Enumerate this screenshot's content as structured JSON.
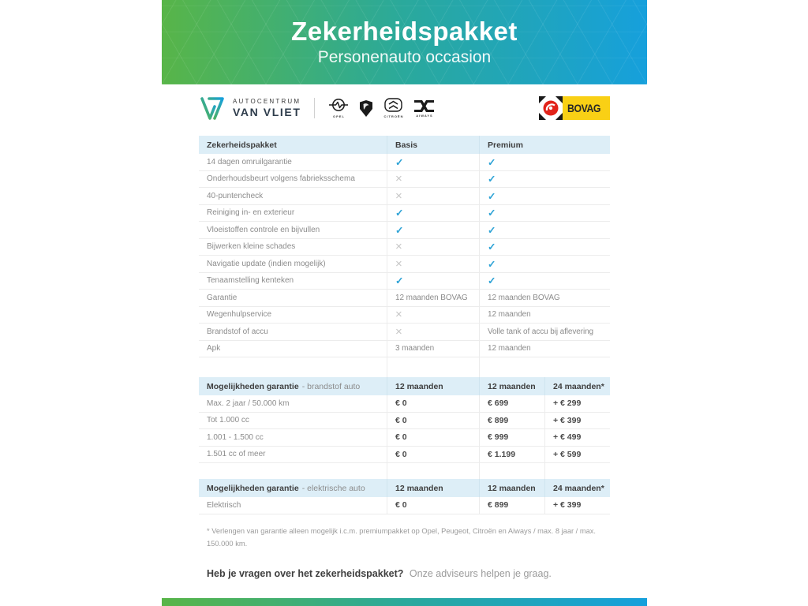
{
  "header": {
    "title": "Zekerheidspakket",
    "subtitle": "Personenauto occasion"
  },
  "branding": {
    "dealer_name_top": "AUTOCENTRUM",
    "dealer_name_bottom": "VAN VLIET",
    "brands": [
      {
        "name": "Opel",
        "caption": "OPEL"
      },
      {
        "name": "Peugeot",
        "caption": ""
      },
      {
        "name": "Citroën",
        "caption": "CITROËN"
      },
      {
        "name": "Aiways",
        "caption": "AIWAYS"
      }
    ],
    "bovag_label": "BOVAG"
  },
  "package_table": {
    "title": "Zekerheidspakket",
    "col_basis": "Basis",
    "col_premium": "Premium",
    "rows": [
      {
        "label": "14 dagen omruilgarantie",
        "basis": "check",
        "premium": "check"
      },
      {
        "label": "Onderhoudsbeurt volgens fabrieksschema",
        "basis": "cross",
        "premium": "check"
      },
      {
        "label": "40-puntencheck",
        "basis": "cross",
        "premium": "check"
      },
      {
        "label": "Reiniging in- en exterieur",
        "basis": "check",
        "premium": "check"
      },
      {
        "label": "Vloeistoffen controle en bijvullen",
        "basis": "check",
        "premium": "check"
      },
      {
        "label": "Bijwerken kleine schades",
        "basis": "cross",
        "premium": "check"
      },
      {
        "label": "Navigatie update (indien mogelijk)",
        "basis": "cross",
        "premium": "check"
      },
      {
        "label": "Tenaamstelling kenteken",
        "basis": "check",
        "premium": "check"
      },
      {
        "label": "Garantie",
        "basis": "12 maanden BOVAG",
        "premium": "12 maanden BOVAG"
      },
      {
        "label": "Wegenhulpservice",
        "basis": "cross",
        "premium": "12 maanden"
      },
      {
        "label": "Brandstof of accu",
        "basis": "cross",
        "premium": "Volle tank of accu bij aflevering"
      },
      {
        "label": "Apk",
        "basis": "3 maanden",
        "premium": "12 maanden"
      }
    ]
  },
  "fuel_table": {
    "title_bold": "Mogelijkheden garantie",
    "title_rest": "- brandstof auto",
    "cols": [
      "12 maanden",
      "12 maanden",
      "24 maanden*"
    ],
    "rows": [
      {
        "label": "Max. 2 jaar / 50.000 km",
        "c1": "€ 0",
        "c2": "€ 699",
        "c3": "+ € 299"
      },
      {
        "label": "Tot 1.000 cc",
        "c1": "€ 0",
        "c2": "€ 899",
        "c3": "+ € 399"
      },
      {
        "label": "1.001 - 1.500 cc",
        "c1": "€ 0",
        "c2": "€ 999",
        "c3": "+ € 499"
      },
      {
        "label": "1.501 cc of meer",
        "c1": "€ 0",
        "c2": "€ 1.199",
        "c3": "+ € 599"
      }
    ]
  },
  "electric_table": {
    "title_bold": "Mogelijkheden garantie",
    "title_rest": "- elektrische auto",
    "cols": [
      "12 maanden",
      "12 maanden",
      "24 maanden*"
    ],
    "rows": [
      {
        "label": "Elektrisch",
        "c1": "€ 0",
        "c2": "€ 899",
        "c3": "+ € 399"
      }
    ]
  },
  "footnote": "* Verlengen van garantie alleen mogelijk i.c.m. premiumpakket op Opel, Peugeot, Citroën en Aiways / max. 8 jaar / max. 150.000 km.",
  "footer_question": {
    "bold": "Heb je vragen over het zekerheidspakket?",
    "rest": "Onze adviseurs helpen je graag."
  },
  "colors": {
    "gradient_green": "#58b548",
    "gradient_blue": "#16a0dc",
    "check": "#2ea3d6",
    "cross": "#c6c6c6",
    "table_header_bg": "#ddeef7",
    "bovag_yellow": "#f9d015",
    "bovag_red": "#e2231a"
  }
}
